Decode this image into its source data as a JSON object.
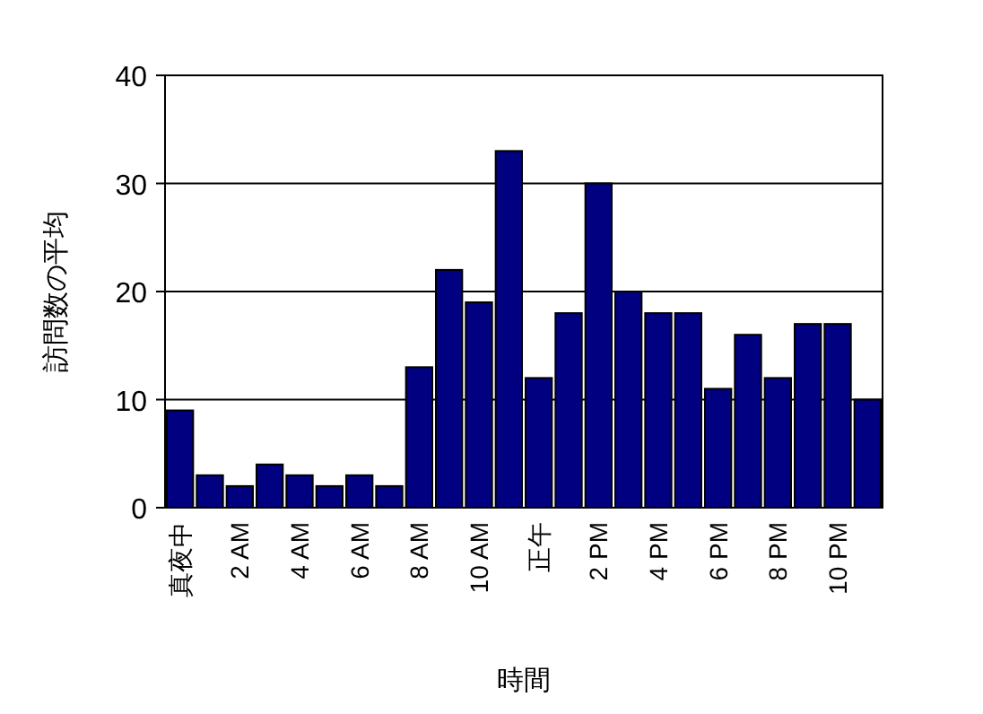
{
  "chart_data": {
    "type": "bar",
    "xlabel": "時間",
    "ylabel": "訪問数の平均",
    "categories": [
      "真夜中",
      null,
      "2 AM",
      null,
      "4 AM",
      null,
      "6 AM",
      null,
      "8 AM",
      null,
      "10 AM",
      null,
      "正午",
      null,
      "2 PM",
      null,
      "4 PM",
      null,
      "6 PM",
      null,
      "8 PM",
      null,
      "10 PM",
      null
    ],
    "values": [
      9,
      3,
      2,
      4,
      3,
      2,
      3,
      2,
      13,
      22,
      19,
      33,
      12,
      18,
      30,
      20,
      18,
      18,
      11,
      16,
      12,
      17,
      17,
      10
    ],
    "color": "#000080",
    "ylim": [
      0,
      40
    ],
    "yticks": [
      0,
      10,
      20,
      30,
      40
    ],
    "grid": "y"
  }
}
